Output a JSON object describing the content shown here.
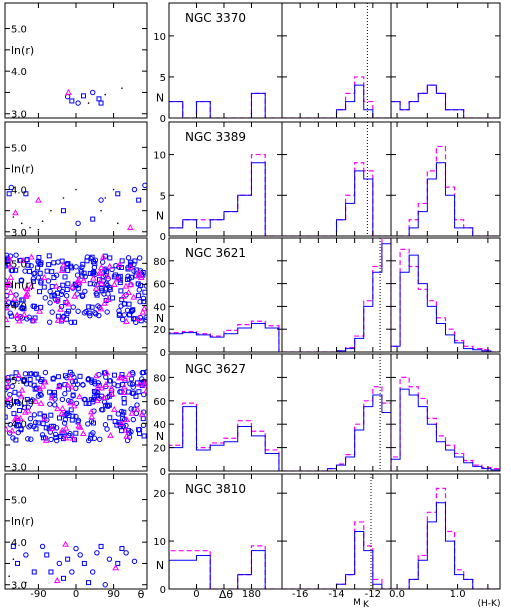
{
  "chart_data": {
    "type": "panel-grid",
    "colors": {
      "blue": "#0000ff",
      "magenta": "#ff00ff",
      "frame": "#000000"
    },
    "xaxis_labels": {
      "theta": "θ",
      "dtheta": "Δθ",
      "mk": "M",
      "mk_sub": "K",
      "hk": "(H-K)"
    },
    "yaxis_labels": {
      "lnr": "ln(r)",
      "n": "N"
    },
    "scatter_xticks": [
      -90,
      0,
      90
    ],
    "scatter_xlim": [
      -170,
      170
    ],
    "scatter_yticks": [
      3.0,
      4.0,
      5.0
    ],
    "dtheta_xticks": [
      0,
      180
    ],
    "dtheta_xlim": [
      -90,
      280
    ],
    "mk_xticks": [
      -16,
      -14,
      -12
    ],
    "mk_xlim": [
      -17,
      -11
    ],
    "hk_xticks": [
      0.0,
      1.0
    ],
    "hk_xlim": [
      -0.1,
      1.7
    ],
    "rows": [
      {
        "galaxy": "NGC 3370",
        "ylim": [
          0,
          14
        ],
        "yticks": [
          0,
          5,
          10
        ],
        "ylim_scatter": [
          2.9,
          5.6
        ],
        "completeness_mk": -12.3,
        "scatter_blue": [
          [
            -10,
            3.3
          ],
          [
            5,
            3.25
          ],
          [
            18,
            3.42
          ],
          [
            40,
            3.5
          ],
          [
            55,
            3.35
          ],
          [
            -20,
            3.4
          ],
          [
            60,
            3.25
          ]
        ],
        "scatter_magenta": [
          [
            -18,
            3.5
          ]
        ],
        "scatter_line": [
          [
            30,
            3.25
          ],
          [
            70,
            3.45
          ],
          [
            110,
            3.6
          ]
        ],
        "dtheta": {
          "edges": [
            -90,
            -45,
            0,
            45,
            90,
            135,
            180,
            225,
            270
          ],
          "blue": [
            2,
            0,
            2,
            0,
            0,
            0,
            3,
            0
          ],
          "magenta": [
            2,
            0,
            2,
            0,
            0,
            0,
            3,
            0
          ]
        },
        "mk": {
          "edges": [
            -17,
            -16.5,
            -16,
            -15.5,
            -15,
            -14.5,
            -14,
            -13.5,
            -13,
            -12.5,
            -12,
            -11.5,
            -11
          ],
          "blue": [
            0,
            0,
            0,
            0,
            0,
            0,
            1,
            2,
            4,
            1,
            0,
            0
          ],
          "magenta": [
            0,
            0,
            0,
            0,
            0,
            0,
            1,
            3,
            5,
            2,
            0,
            0
          ]
        },
        "hk": {
          "edges": [
            -0.1,
            0.05,
            0.2,
            0.35,
            0.5,
            0.65,
            0.8,
            0.95,
            1.1,
            1.25,
            1.4,
            1.55,
            1.7
          ],
          "blue": [
            2,
            1,
            2,
            3,
            4,
            3,
            1,
            1,
            0,
            0,
            0,
            0
          ],
          "magenta": [
            2,
            1,
            2,
            3,
            4,
            3,
            1,
            1,
            0,
            0,
            0,
            0
          ]
        }
      },
      {
        "galaxy": "NGC 3389",
        "ylim": [
          0,
          14
        ],
        "yticks": [
          0,
          5,
          10
        ],
        "ylim_scatter": [
          2.9,
          5.6
        ],
        "completeness_mk": -12.3,
        "scatter_blue": [
          [
            -160,
            3.9
          ],
          [
            -155,
            4.05
          ],
          [
            -30,
            3.5
          ],
          [
            5,
            3.2
          ],
          [
            40,
            3.3
          ],
          [
            60,
            3.75
          ],
          [
            100,
            3.9
          ],
          [
            140,
            4.0
          ],
          [
            150,
            3.75
          ],
          [
            165,
            4.1
          ],
          [
            -120,
            3.9
          ]
        ],
        "scatter_magenta": [
          [
            -145,
            3.45
          ],
          [
            -90,
            3.75
          ],
          [
            130,
            3.1
          ]
        ],
        "scatter_line": [
          [
            -90,
            3.05
          ],
          [
            -80,
            3.25
          ],
          [
            -60,
            3.5
          ],
          [
            -30,
            3.8
          ],
          [
            0,
            4.0
          ],
          [
            -150,
            3.35
          ],
          [
            -130,
            3.2
          ],
          [
            -110,
            3.1
          ],
          [
            100,
            3.2
          ],
          [
            60,
            3.5
          ],
          [
            70,
            3.8
          ],
          [
            90,
            4.0
          ]
        ],
        "dtheta": {
          "edges": [
            -90,
            -45,
            0,
            45,
            90,
            135,
            180,
            225,
            270
          ],
          "blue": [
            1,
            2,
            1,
            2,
            3,
            5,
            9,
            0
          ],
          "magenta": [
            1,
            2,
            2,
            2,
            3,
            5,
            10,
            0
          ]
        },
        "mk": {
          "edges": [
            -17,
            -16.5,
            -16,
            -15.5,
            -15,
            -14.5,
            -14,
            -13.5,
            -13,
            -12.5,
            -12,
            -11.5,
            -11
          ],
          "blue": [
            0,
            0,
            0,
            0,
            0,
            0,
            2,
            4,
            8,
            7,
            0,
            0
          ],
          "magenta": [
            0,
            0,
            0,
            0,
            0,
            0,
            2,
            5,
            9,
            8,
            0,
            0
          ]
        },
        "hk": {
          "edges": [
            -0.1,
            0.05,
            0.2,
            0.35,
            0.5,
            0.65,
            0.8,
            0.95,
            1.1,
            1.25,
            1.4,
            1.55,
            1.7
          ],
          "blue": [
            0,
            0,
            1,
            3,
            7,
            9,
            5,
            1,
            1,
            0,
            0,
            0
          ],
          "magenta": [
            0,
            0,
            2,
            4,
            8,
            11,
            6,
            2,
            1,
            0,
            0,
            0
          ]
        }
      },
      {
        "galaxy": "NGC 3621",
        "ylim": [
          0,
          100
        ],
        "yticks": [
          0,
          20,
          40,
          60,
          80
        ],
        "ylim_scatter": [
          2.9,
          5.6
        ],
        "completeness_mk": -11.6,
        "dense": true,
        "dtheta": {
          "edges": [
            -90,
            -45,
            0,
            45,
            90,
            135,
            180,
            225,
            270
          ],
          "blue": [
            16,
            17,
            15,
            13,
            16,
            21,
            25,
            21
          ],
          "magenta": [
            17,
            18,
            16,
            14,
            19,
            24,
            27,
            23
          ]
        },
        "mk": {
          "edges": [
            -17,
            -16.5,
            -16,
            -15.5,
            -15,
            -14.5,
            -14,
            -13.5,
            -13,
            -12.5,
            -12,
            -11.5,
            -11
          ],
          "blue": [
            0,
            0,
            0,
            0,
            0,
            0,
            1,
            3,
            12,
            40,
            70,
            95
          ],
          "magenta": [
            0,
            0,
            0,
            0,
            0,
            0,
            1,
            4,
            14,
            45,
            75,
            100
          ]
        },
        "hk": {
          "edges": [
            -0.1,
            0.05,
            0.2,
            0.35,
            0.5,
            0.65,
            0.8,
            0.95,
            1.1,
            1.25,
            1.4,
            1.55,
            1.7
          ],
          "blue": [
            5,
            70,
            85,
            60,
            40,
            25,
            15,
            8,
            3,
            2,
            1,
            0
          ],
          "magenta": [
            5,
            90,
            75,
            55,
            45,
            30,
            20,
            10,
            5,
            3,
            2,
            0
          ]
        }
      },
      {
        "galaxy": "NGC 3627",
        "ylim": [
          0,
          100
        ],
        "yticks": [
          0,
          20,
          40,
          60,
          80
        ],
        "ylim_scatter": [
          2.9,
          5.6
        ],
        "completeness_mk": -11.6,
        "dense": true,
        "dtheta": {
          "edges": [
            -90,
            -45,
            0,
            45,
            90,
            135,
            180,
            225,
            270
          ],
          "blue": [
            20,
            55,
            18,
            22,
            25,
            38,
            30,
            15
          ],
          "magenta": [
            22,
            58,
            20,
            24,
            28,
            43,
            34,
            18
          ]
        },
        "mk": {
          "edges": [
            -17,
            -16.5,
            -16,
            -15.5,
            -15,
            -14.5,
            -14,
            -13.5,
            -13,
            -12.5,
            -12,
            -11.5,
            -11
          ],
          "blue": [
            0,
            0,
            0,
            0,
            0,
            2,
            5,
            12,
            35,
            55,
            65,
            50
          ],
          "magenta": [
            0,
            0,
            0,
            0,
            0,
            2,
            6,
            14,
            40,
            60,
            72,
            58
          ]
        },
        "hk": {
          "edges": [
            -0.1,
            0.05,
            0.2,
            0.35,
            0.5,
            0.65,
            0.8,
            0.95,
            1.1,
            1.25,
            1.4,
            1.55,
            1.7
          ],
          "blue": [
            10,
            70,
            65,
            55,
            40,
            25,
            18,
            12,
            7,
            4,
            2,
            1
          ],
          "magenta": [
            12,
            80,
            72,
            62,
            45,
            30,
            22,
            15,
            9,
            5,
            3,
            2
          ]
        }
      },
      {
        "galaxy": "NGC 3810",
        "ylim": [
          0,
          24
        ],
        "yticks": [
          0,
          10,
          20
        ],
        "ylim_scatter": [
          2.9,
          5.6
        ],
        "completeness_mk": -12.1,
        "scatter_blue": [
          [
            -140,
            3.5
          ],
          [
            -120,
            3.7
          ],
          [
            -100,
            3.3
          ],
          [
            -80,
            3.9
          ],
          [
            -60,
            3.3
          ],
          [
            -40,
            3.5
          ],
          [
            -20,
            3.6
          ],
          [
            0,
            3.85
          ],
          [
            20,
            3.5
          ],
          [
            40,
            3.3
          ],
          [
            60,
            3.9
          ],
          [
            80,
            3.6
          ],
          [
            100,
            3.5
          ],
          [
            120,
            3.75
          ],
          [
            -150,
            3.9
          ],
          [
            -10,
            3.3
          ],
          [
            30,
            3.05
          ],
          [
            70,
            3.0
          ],
          [
            110,
            3.85
          ],
          [
            140,
            3.55
          ],
          [
            -70,
            3.7
          ],
          [
            50,
            3.75
          ],
          [
            -30,
            3.15
          ],
          [
            10,
            3.7
          ]
        ],
        "scatter_magenta": [
          [
            -25,
            3.95
          ],
          [
            -45,
            3.1
          ],
          [
            95,
            3.4
          ]
        ],
        "scatter_line": [
          [
            -150,
            3.6
          ],
          [
            -160,
            3.2
          ],
          [
            -120,
            3.05
          ]
        ],
        "dtheta": {
          "edges": [
            -90,
            -45,
            0,
            45,
            90,
            135,
            180,
            225,
            270
          ],
          "blue": [
            6,
            6,
            7,
            0,
            0,
            3,
            8,
            0
          ],
          "magenta": [
            8,
            8,
            8,
            0,
            0,
            3,
            9,
            0
          ]
        },
        "mk": {
          "edges": [
            -17,
            -16.5,
            -16,
            -15.5,
            -15,
            -14.5,
            -14,
            -13.5,
            -13,
            -12.5,
            -12,
            -11.5,
            -11
          ],
          "blue": [
            0,
            0,
            0,
            0,
            0,
            0,
            1,
            3,
            12,
            8,
            1,
            0
          ],
          "magenta": [
            0,
            0,
            0,
            0,
            0,
            0,
            1,
            3,
            14,
            9,
            2,
            0
          ]
        },
        "hk": {
          "edges": [
            -0.1,
            0.05,
            0.2,
            0.35,
            0.5,
            0.65,
            0.8,
            0.95,
            1.1,
            1.25,
            1.4,
            1.55,
            1.7
          ],
          "blue": [
            0,
            0,
            2,
            6,
            14,
            18,
            10,
            3,
            2,
            0,
            0,
            0
          ],
          "magenta": [
            0,
            0,
            2,
            7,
            16,
            21,
            12,
            4,
            2,
            0,
            0,
            0
          ]
        }
      }
    ]
  }
}
